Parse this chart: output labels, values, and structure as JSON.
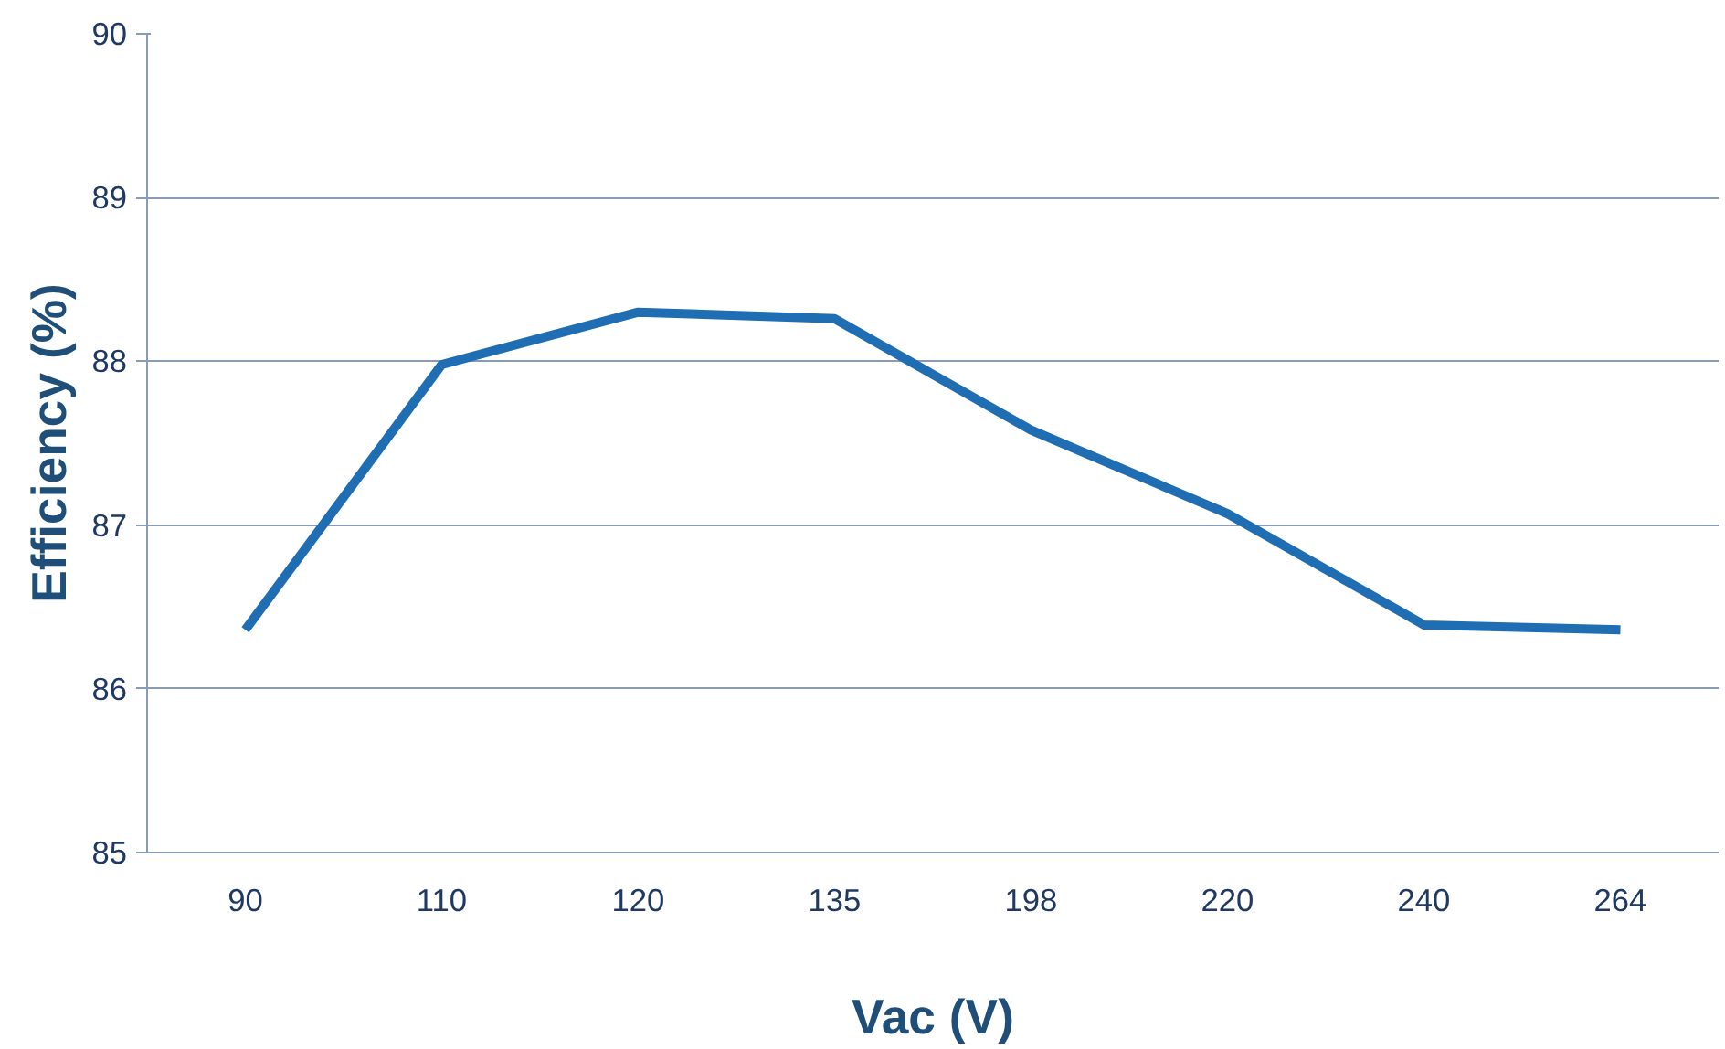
{
  "chart_data": {
    "type": "line",
    "xlabel": "Vac (V)",
    "ylabel": "Efficiency (%)",
    "categories": [
      "90",
      "110",
      "120",
      "135",
      "198",
      "220",
      "240",
      "264"
    ],
    "series": [
      {
        "color": "#1f6db3",
        "values": [
          86.36,
          87.98,
          88.3,
          88.26,
          87.58,
          87.07,
          86.39,
          86.36
        ]
      }
    ],
    "ylim": [
      85,
      90
    ],
    "yticks": [
      85,
      86,
      87,
      88,
      89,
      90
    ],
    "grid": "y",
    "marker": "none",
    "line_style": "solid"
  }
}
